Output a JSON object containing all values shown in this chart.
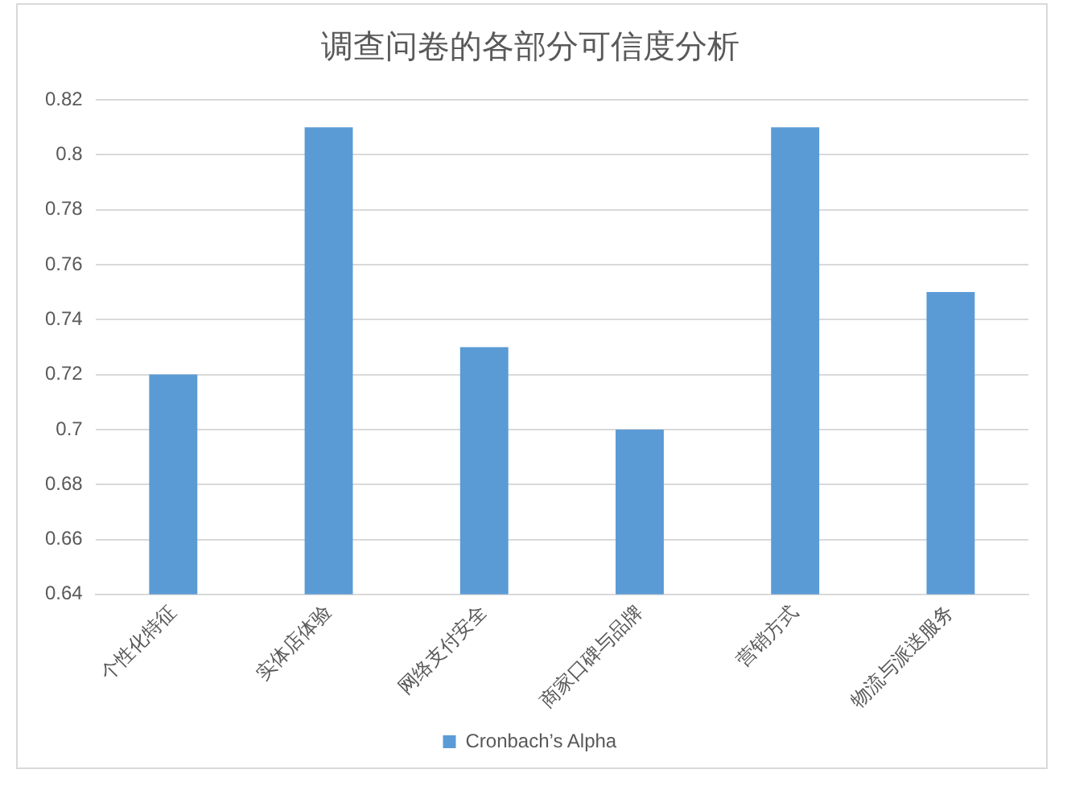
{
  "chart_data": {
    "type": "bar",
    "title": "调查问卷的各部分可信度分析",
    "categories": [
      "个性化特征",
      "实体店体验",
      "网络支付安全",
      "商家口碑与品牌",
      "营销方式",
      "物流与派送服务"
    ],
    "series": [
      {
        "name": "Cronbach’s Alpha",
        "color": "#5b9bd5",
        "values": [
          0.72,
          0.81,
          0.73,
          0.7,
          0.81,
          0.75
        ]
      }
    ],
    "ylim": [
      0.64,
      0.82
    ],
    "yticks": [
      0.64,
      0.66,
      0.68,
      0.7,
      0.72,
      0.74,
      0.76,
      0.78,
      0.8,
      0.82
    ],
    "grid": "y",
    "legend": "bottom"
  }
}
